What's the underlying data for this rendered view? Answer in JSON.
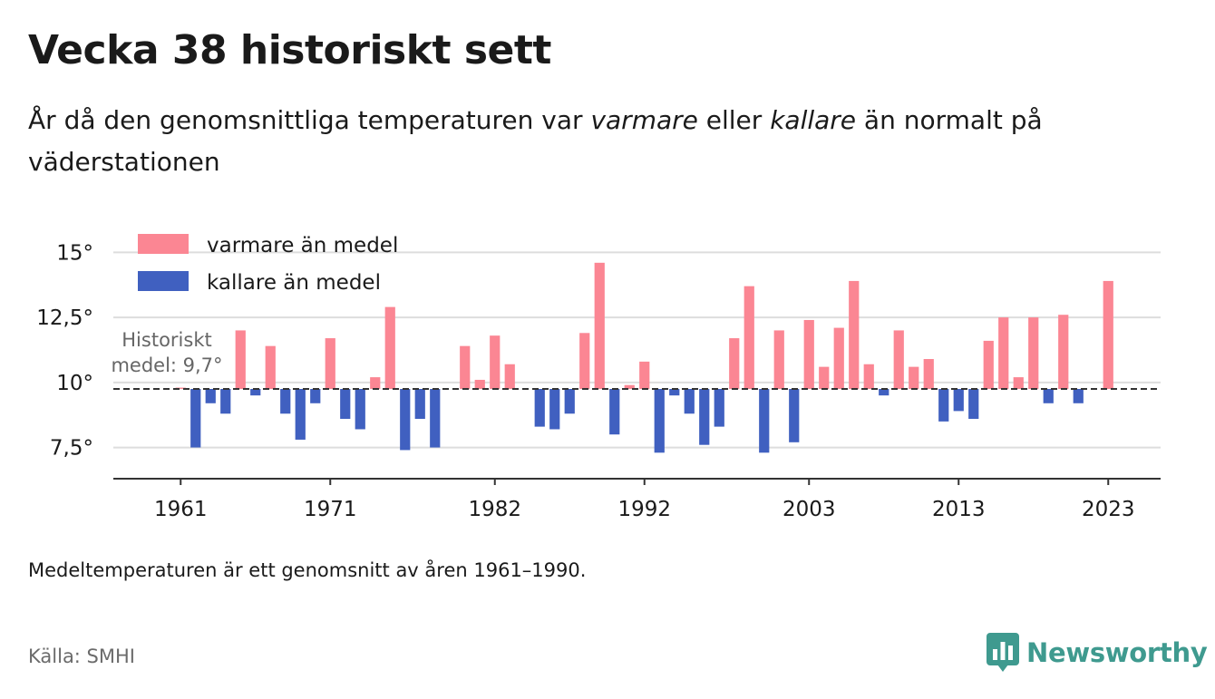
{
  "header": {
    "title": "Vecka 38 historiskt sett",
    "subtitle_part1": "År då den genomsnittliga temperaturen var ",
    "subtitle_warm": "varmare",
    "subtitle_part2": " eller ",
    "subtitle_cold": "kallare",
    "subtitle_part3": " än normalt på väderstationen"
  },
  "footer": {
    "note": "Medeltemperaturen är ett genomsnitt av åren 1961–1990.",
    "source": "Källa: SMHI",
    "brand": "Newsworthy"
  },
  "colors": {
    "warm": "#fb8693",
    "cold": "#4060c0",
    "grid": "#dddddd",
    "brand": "#3f9a8f"
  },
  "icons": {
    "brand_logo": "bar-chart-speech-bubble-icon"
  },
  "chart_data": {
    "type": "bar",
    "ylim": [
      6.3,
      15.5
    ],
    "yticks": [
      {
        "value": 7.5,
        "label": "7,5°"
      },
      {
        "value": 10,
        "label": "10°"
      },
      {
        "value": 12.5,
        "label": "12,5°"
      },
      {
        "value": 15,
        "label": "15°"
      }
    ],
    "xlim": [
      1956.5,
      2026.5
    ],
    "xticks": [
      1961,
      1971,
      1982,
      1992,
      2003,
      2013,
      2023
    ],
    "baseline": 9.75,
    "baseline_label_line1": "Historiskt",
    "baseline_label_line2": "medel: 9,7°",
    "legend_position": "top-left",
    "series": [
      {
        "name": "varmare än medel",
        "color_key": "warm"
      },
      {
        "name": "kallare än medel",
        "color_key": "cold"
      }
    ],
    "x": [
      1961,
      1962,
      1963,
      1964,
      1965,
      1966,
      1967,
      1968,
      1969,
      1970,
      1971,
      1972,
      1973,
      1974,
      1975,
      1976,
      1977,
      1978,
      1979,
      1980,
      1981,
      1982,
      1983,
      1984,
      1985,
      1986,
      1987,
      1988,
      1989,
      1990,
      1991,
      1992,
      1993,
      1994,
      1995,
      1996,
      1997,
      1998,
      1999,
      2000,
      2001,
      2002,
      2003,
      2004,
      2005,
      2006,
      2007,
      2008,
      2009,
      2010,
      2011,
      2012,
      2013,
      2014,
      2015,
      2016,
      2017,
      2018,
      2019,
      2020,
      2021,
      2022,
      2023
    ],
    "values": [
      9.8,
      7.5,
      9.2,
      8.8,
      12.0,
      9.5,
      11.4,
      8.8,
      7.8,
      9.2,
      11.7,
      8.6,
      8.2,
      10.2,
      12.9,
      7.4,
      8.6,
      7.5,
      null,
      11.4,
      10.1,
      11.8,
      10.7,
      null,
      8.3,
      8.2,
      8.8,
      11.9,
      14.6,
      8.0,
      9.9,
      10.8,
      7.3,
      9.5,
      8.8,
      7.6,
      8.3,
      11.7,
      13.7,
      7.3,
      12.0,
      7.7,
      12.4,
      10.6,
      12.1,
      13.9,
      10.7,
      9.5,
      12.0,
      10.6,
      10.9,
      8.5,
      8.9,
      8.6,
      11.6,
      12.5,
      10.2,
      12.5,
      9.2,
      12.6,
      9.2,
      null,
      13.9
    ]
  }
}
